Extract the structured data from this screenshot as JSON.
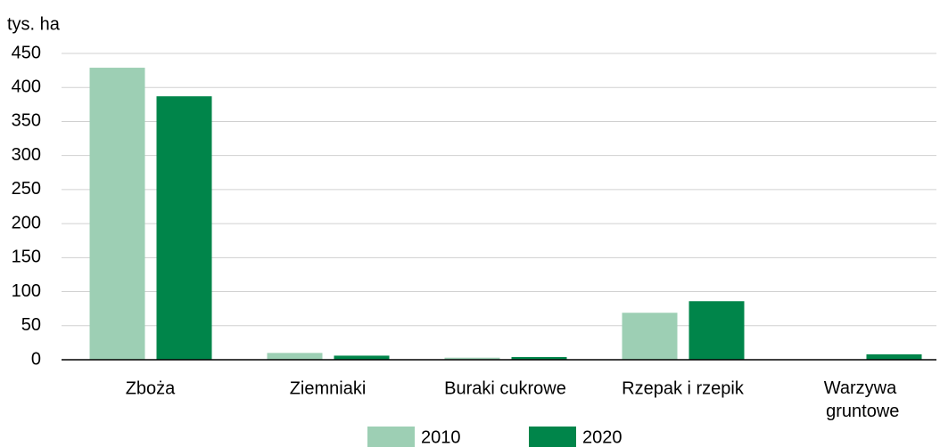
{
  "chart_data": {
    "type": "bar",
    "ylabel": "tys. ha",
    "categories": [
      "Zboża",
      "Ziemniaki",
      "Buraki cukrowe",
      "Rzepak i rzepik",
      "Warzywa gruntowe"
    ],
    "series": [
      {
        "name": "2010",
        "color": "#9dcfb4",
        "values": [
          429,
          10,
          3,
          69,
          0
        ]
      },
      {
        "name": "2020",
        "color": "#00854a",
        "values": [
          387,
          6,
          4,
          86,
          8
        ]
      }
    ],
    "ylim": [
      0,
      450
    ],
    "yticks": [
      0,
      50,
      100,
      150,
      200,
      250,
      300,
      350,
      400,
      450
    ],
    "grid": true
  }
}
